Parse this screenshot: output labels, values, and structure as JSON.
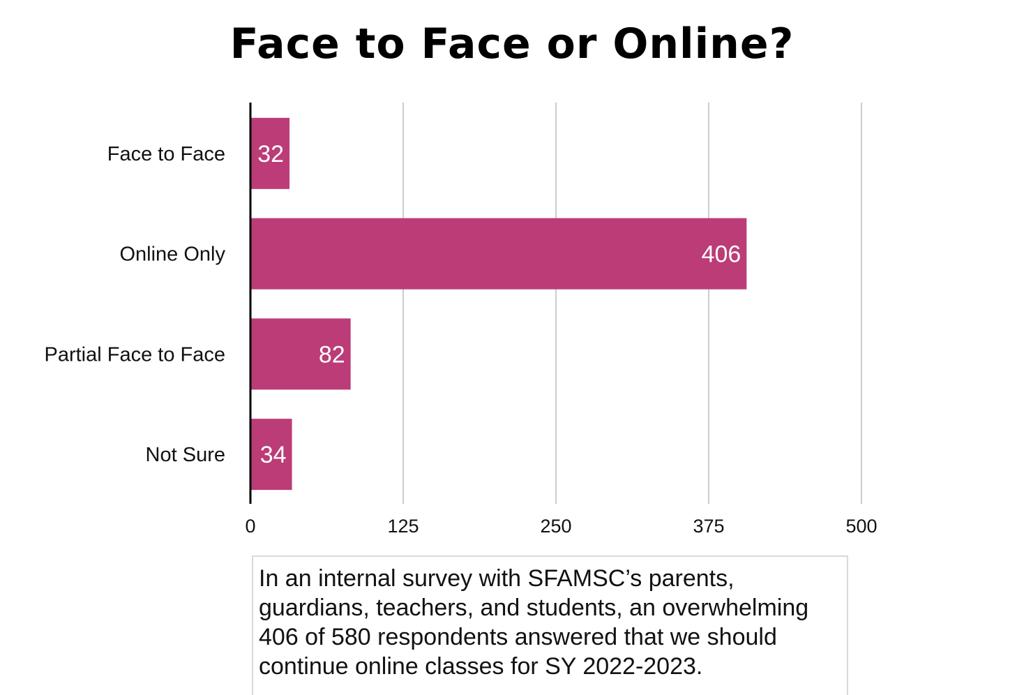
{
  "chart_data": {
    "type": "bar",
    "orientation": "horizontal",
    "title": "Face to Face or Online?",
    "categories": [
      "Face to Face",
      "Online Only",
      "Partial Face to Face",
      "Not Sure"
    ],
    "values": [
      32,
      406,
      82,
      34
    ],
    "data_labels": [
      "32",
      "406",
      "82",
      "34"
    ],
    "xticks": [
      0,
      125,
      250,
      375,
      500
    ],
    "xtick_labels": [
      "0",
      "125",
      "250",
      "375",
      "500"
    ],
    "xlim": [
      0,
      500
    ],
    "xlabel": "",
    "ylabel": "",
    "grid": true,
    "bar_color": "#bb3c77",
    "caption": "In an internal survey with SFAMSC’s parents, guardians, teachers, and students, an overwhelming 406 of 580 respondents answered that we should continue online classes for SY 2022-2023."
  }
}
